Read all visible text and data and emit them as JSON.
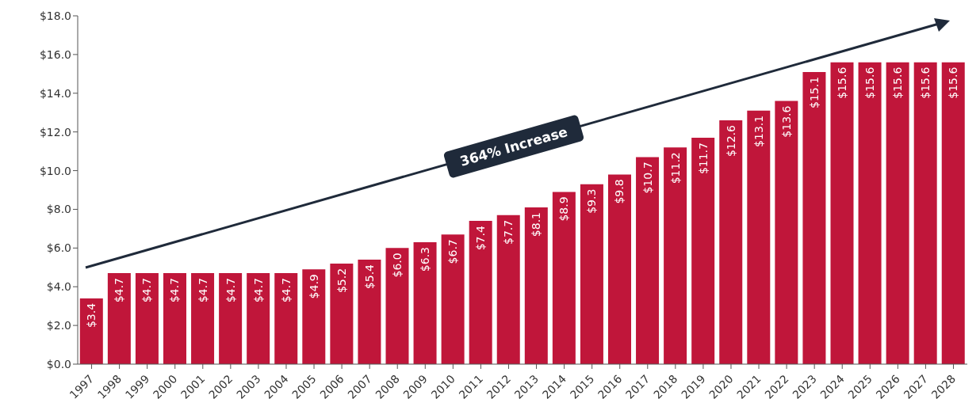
{
  "chart_data": {
    "type": "bar",
    "categories": [
      "1997",
      "1998",
      "1999",
      "2000",
      "2001",
      "2002",
      "2003",
      "2004",
      "2005",
      "2006",
      "2007",
      "2008",
      "2009",
      "2010",
      "2011",
      "2012",
      "2013",
      "2014",
      "2015",
      "2016",
      "2017",
      "2018",
      "2019",
      "2020",
      "2021",
      "2022",
      "2023",
      "2024",
      "2025",
      "2026",
      "2027",
      "2028"
    ],
    "values": [
      3.4,
      4.7,
      4.7,
      4.7,
      4.7,
      4.7,
      4.7,
      4.7,
      4.9,
      5.2,
      5.4,
      6.0,
      6.3,
      6.7,
      7.4,
      7.7,
      8.1,
      8.9,
      9.3,
      9.8,
      10.7,
      11.2,
      11.7,
      12.6,
      13.1,
      13.6,
      15.1,
      15.6,
      15.6,
      15.6,
      15.6,
      15.6
    ],
    "value_labels": [
      "$3.4",
      "$4.7",
      "$4.7",
      "$4.7",
      "$4.7",
      "$4.7",
      "$4.7",
      "$4.7",
      "$4.9",
      "$5.2",
      "$5.4",
      "$6.0",
      "$6.3",
      "$6.7",
      "$7.4",
      "$7.7",
      "$8.1",
      "$8.9",
      "$9.3",
      "$9.8",
      "$10.7",
      "$11.2",
      "$11.7",
      "$12.6",
      "$13.1",
      "$13.6",
      "$15.1",
      "$15.6",
      "$15.6",
      "$15.6",
      "$15.6",
      "$15.6"
    ],
    "color": "#c0163a",
    "ylim": [
      0,
      18
    ],
    "yticks": [
      {
        "value": 0,
        "label": "$0.0"
      },
      {
        "value": 2,
        "label": "$2.0"
      },
      {
        "value": 4,
        "label": "$4.0"
      },
      {
        "value": 6,
        "label": "$6.0"
      },
      {
        "value": 8,
        "label": "$8.0"
      },
      {
        "value": 10,
        "label": "$10.0"
      },
      {
        "value": 12,
        "label": "$12.0"
      },
      {
        "value": 14,
        "label": "$14.0"
      },
      {
        "value": 16,
        "label": "$16.0"
      },
      {
        "value": 18,
        "label": "$18.0"
      }
    ],
    "grid": false,
    "annotations": [
      "364% Increase"
    ]
  }
}
